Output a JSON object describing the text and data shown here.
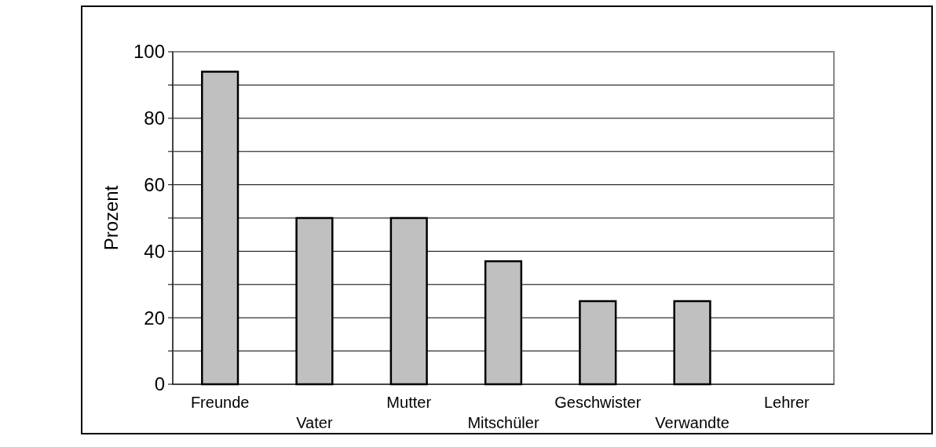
{
  "chart_data": {
    "type": "bar",
    "ylabel": "Prozent",
    "categories": [
      "Freunde",
      "Vater",
      "Mutter",
      "Mitschüler",
      "Geschwister",
      "Verwandte",
      "Lehrer"
    ],
    "values": [
      94,
      50,
      50,
      37,
      25,
      25,
      0
    ],
    "color": "#c0c0c0",
    "ylim": [
      0,
      100
    ],
    "yticks": [
      0,
      {
        "value": 10,
        "label": null
      },
      20,
      {
        "value": 30,
        "label": null
      },
      40,
      {
        "value": 50,
        "label": null
      },
      60,
      {
        "value": 70,
        "label": null
      },
      80,
      {
        "value": 90,
        "label": null
      },
      100
    ],
    "grid": true
  }
}
